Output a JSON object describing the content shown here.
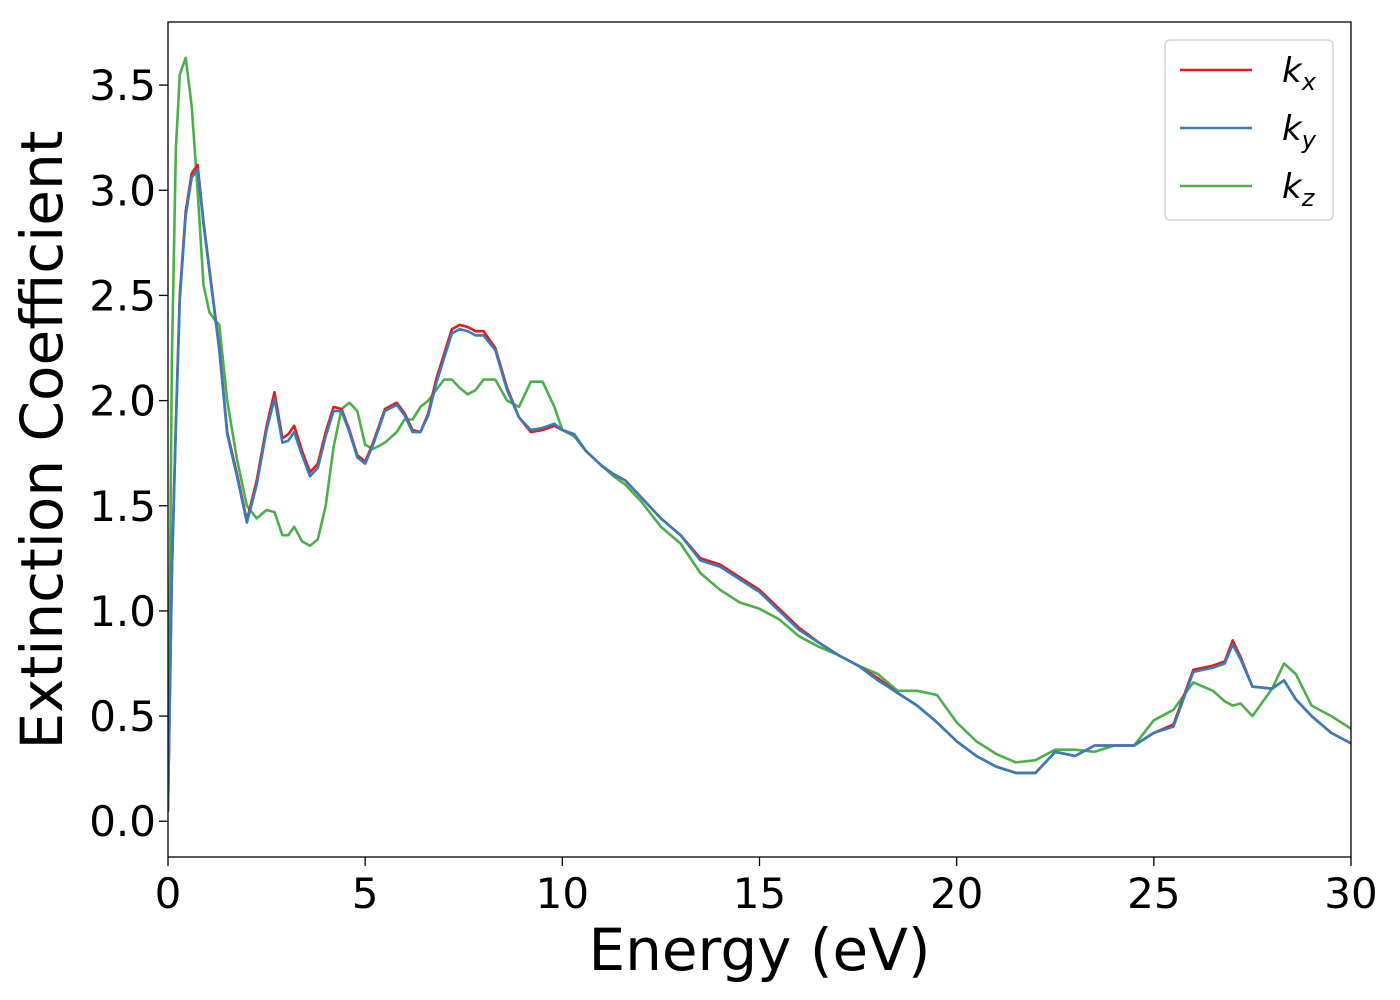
{
  "chart_data": {
    "type": "line",
    "title": "",
    "xlabel": "Energy (eV)",
    "ylabel": "Extinction Coefficient",
    "xlim": [
      0,
      30
    ],
    "ylim": [
      -0.17,
      3.8
    ],
    "xticks": [
      0,
      5,
      10,
      15,
      20,
      25,
      30
    ],
    "xtick_labels": [
      "0",
      "5",
      "10",
      "15",
      "20",
      "25",
      "30"
    ],
    "yticks": [
      0.0,
      0.5,
      1.0,
      1.5,
      2.0,
      2.5,
      3.0,
      3.5
    ],
    "ytick_labels": [
      "0.0",
      "0.5",
      "1.0",
      "1.5",
      "2.0",
      "2.5",
      "3.0",
      "3.5"
    ],
    "grid": false,
    "legend_position": "top-right",
    "series": [
      {
        "name": "k",
        "subscript": "x",
        "color": "#e41a1c",
        "x": [
          0,
          0.1,
          0.2,
          0.3,
          0.45,
          0.6,
          0.75,
          0.9,
          1.1,
          1.3,
          1.5,
          1.75,
          2.0,
          2.25,
          2.5,
          2.7,
          2.9,
          3.05,
          3.2,
          3.4,
          3.6,
          3.8,
          4.0,
          4.2,
          4.4,
          4.6,
          4.8,
          5.0,
          5.2,
          5.5,
          5.8,
          6.0,
          6.2,
          6.4,
          6.6,
          6.8,
          7.0,
          7.2,
          7.4,
          7.6,
          7.8,
          8.0,
          8.3,
          8.6,
          8.9,
          9.2,
          9.5,
          9.8,
          10.0,
          10.3,
          10.6,
          11.0,
          11.3,
          11.6,
          12.0,
          12.5,
          13.0,
          13.5,
          14.0,
          14.5,
          15.0,
          15.5,
          16.0,
          16.5,
          17.0,
          17.5,
          18.0,
          18.5,
          19.0,
          19.5,
          20.0,
          20.5,
          21.0,
          21.5,
          22.0,
          22.5,
          23.0,
          23.5,
          24.0,
          24.5,
          25.0,
          25.5,
          26.0,
          26.5,
          26.8,
          27.0,
          27.2,
          27.5,
          28.0,
          28.3,
          28.6,
          29.0,
          29.5,
          30.0
        ],
        "values": [
          0.05,
          1.2,
          1.9,
          2.5,
          2.9,
          3.08,
          3.12,
          2.85,
          2.55,
          2.25,
          1.85,
          1.65,
          1.43,
          1.62,
          1.88,
          2.04,
          1.82,
          1.84,
          1.88,
          1.76,
          1.66,
          1.7,
          1.85,
          1.97,
          1.96,
          1.86,
          1.74,
          1.71,
          1.8,
          1.96,
          1.99,
          1.94,
          1.86,
          1.85,
          1.94,
          2.1,
          2.22,
          2.34,
          2.36,
          2.35,
          2.33,
          2.33,
          2.25,
          2.06,
          1.92,
          1.85,
          1.86,
          1.88,
          1.86,
          1.84,
          1.76,
          1.69,
          1.65,
          1.62,
          1.54,
          1.44,
          1.36,
          1.25,
          1.22,
          1.16,
          1.1,
          1.01,
          0.92,
          0.85,
          0.79,
          0.74,
          0.68,
          0.61,
          0.55,
          0.47,
          0.38,
          0.31,
          0.26,
          0.23,
          0.23,
          0.33,
          0.31,
          0.36,
          0.36,
          0.36,
          0.42,
          0.46,
          0.72,
          0.74,
          0.76,
          0.86,
          0.78,
          0.64,
          0.63,
          0.67,
          0.58,
          0.5,
          0.42,
          0.37
        ]
      },
      {
        "name": "k",
        "subscript": "y",
        "color": "#377eb8",
        "x": [
          0,
          0.1,
          0.2,
          0.3,
          0.45,
          0.6,
          0.75,
          0.9,
          1.1,
          1.3,
          1.5,
          1.75,
          2.0,
          2.25,
          2.5,
          2.7,
          2.9,
          3.05,
          3.2,
          3.4,
          3.6,
          3.8,
          4.0,
          4.2,
          4.4,
          4.6,
          4.8,
          5.0,
          5.2,
          5.5,
          5.8,
          6.0,
          6.2,
          6.4,
          6.6,
          6.8,
          7.0,
          7.2,
          7.4,
          7.6,
          7.8,
          8.0,
          8.3,
          8.6,
          8.9,
          9.2,
          9.5,
          9.8,
          10.0,
          10.3,
          10.6,
          11.0,
          11.3,
          11.6,
          12.0,
          12.5,
          13.0,
          13.5,
          14.0,
          14.5,
          15.0,
          15.5,
          16.0,
          16.5,
          17.0,
          17.5,
          18.0,
          18.5,
          19.0,
          19.5,
          20.0,
          20.5,
          21.0,
          21.5,
          22.0,
          22.5,
          23.0,
          23.5,
          24.0,
          24.5,
          25.0,
          25.5,
          26.0,
          26.5,
          26.8,
          27.0,
          27.2,
          27.5,
          28.0,
          28.3,
          28.6,
          29.0,
          29.5,
          30.0
        ],
        "values": [
          0.05,
          1.18,
          1.88,
          2.48,
          2.88,
          3.06,
          3.1,
          2.84,
          2.54,
          2.24,
          1.84,
          1.64,
          1.42,
          1.6,
          1.86,
          2.01,
          1.8,
          1.81,
          1.85,
          1.74,
          1.64,
          1.68,
          1.83,
          1.95,
          1.95,
          1.85,
          1.73,
          1.7,
          1.79,
          1.95,
          1.98,
          1.93,
          1.85,
          1.85,
          1.93,
          2.08,
          2.2,
          2.32,
          2.34,
          2.33,
          2.31,
          2.31,
          2.24,
          2.05,
          1.92,
          1.86,
          1.87,
          1.89,
          1.86,
          1.84,
          1.76,
          1.69,
          1.65,
          1.62,
          1.54,
          1.44,
          1.36,
          1.24,
          1.21,
          1.15,
          1.09,
          1.0,
          0.91,
          0.85,
          0.79,
          0.74,
          0.67,
          0.61,
          0.55,
          0.47,
          0.38,
          0.31,
          0.26,
          0.23,
          0.23,
          0.33,
          0.31,
          0.36,
          0.36,
          0.36,
          0.42,
          0.45,
          0.71,
          0.73,
          0.75,
          0.84,
          0.77,
          0.64,
          0.63,
          0.67,
          0.58,
          0.5,
          0.42,
          0.37
        ]
      },
      {
        "name": "k",
        "subscript": "z",
        "color": "#4daf4a",
        "x": [
          0,
          0.1,
          0.2,
          0.3,
          0.45,
          0.6,
          0.75,
          0.9,
          1.05,
          1.2,
          1.3,
          1.5,
          1.75,
          2.0,
          2.25,
          2.5,
          2.7,
          2.9,
          3.05,
          3.2,
          3.4,
          3.6,
          3.8,
          4.0,
          4.2,
          4.4,
          4.6,
          4.8,
          5.0,
          5.2,
          5.5,
          5.8,
          6.0,
          6.2,
          6.4,
          6.6,
          6.8,
          7.0,
          7.2,
          7.4,
          7.6,
          7.8,
          8.0,
          8.3,
          8.6,
          8.9,
          9.2,
          9.5,
          9.8,
          10.0,
          10.3,
          10.6,
          11.0,
          11.3,
          11.6,
          12.0,
          12.5,
          13.0,
          13.5,
          14.0,
          14.5,
          15.0,
          15.5,
          16.0,
          16.5,
          17.0,
          17.5,
          18.0,
          18.5,
          19.0,
          19.5,
          20.0,
          20.5,
          21.0,
          21.5,
          22.0,
          22.5,
          23.0,
          23.5,
          24.0,
          24.5,
          25.0,
          25.5,
          26.0,
          26.5,
          26.8,
          27.0,
          27.2,
          27.5,
          28.0,
          28.3,
          28.6,
          29.0,
          29.5,
          30.0
        ],
        "values": [
          0.05,
          2.2,
          3.2,
          3.55,
          3.63,
          3.4,
          3.0,
          2.55,
          2.42,
          2.38,
          2.36,
          2.0,
          1.72,
          1.5,
          1.44,
          1.48,
          1.47,
          1.36,
          1.36,
          1.4,
          1.33,
          1.31,
          1.34,
          1.5,
          1.78,
          1.96,
          1.99,
          1.95,
          1.79,
          1.77,
          1.8,
          1.85,
          1.91,
          1.91,
          1.97,
          2.0,
          2.05,
          2.1,
          2.1,
          2.06,
          2.03,
          2.05,
          2.1,
          2.1,
          2.0,
          1.97,
          2.09,
          2.09,
          1.97,
          1.86,
          1.83,
          1.76,
          1.69,
          1.64,
          1.6,
          1.52,
          1.4,
          1.32,
          1.18,
          1.1,
          1.04,
          1.01,
          0.96,
          0.88,
          0.83,
          0.79,
          0.74,
          0.7,
          0.62,
          0.62,
          0.6,
          0.47,
          0.38,
          0.32,
          0.28,
          0.29,
          0.34,
          0.34,
          0.33,
          0.36,
          0.36,
          0.48,
          0.53,
          0.66,
          0.62,
          0.57,
          0.55,
          0.56,
          0.5,
          0.63,
          0.75,
          0.7,
          0.55,
          0.5,
          0.44
        ]
      }
    ]
  }
}
